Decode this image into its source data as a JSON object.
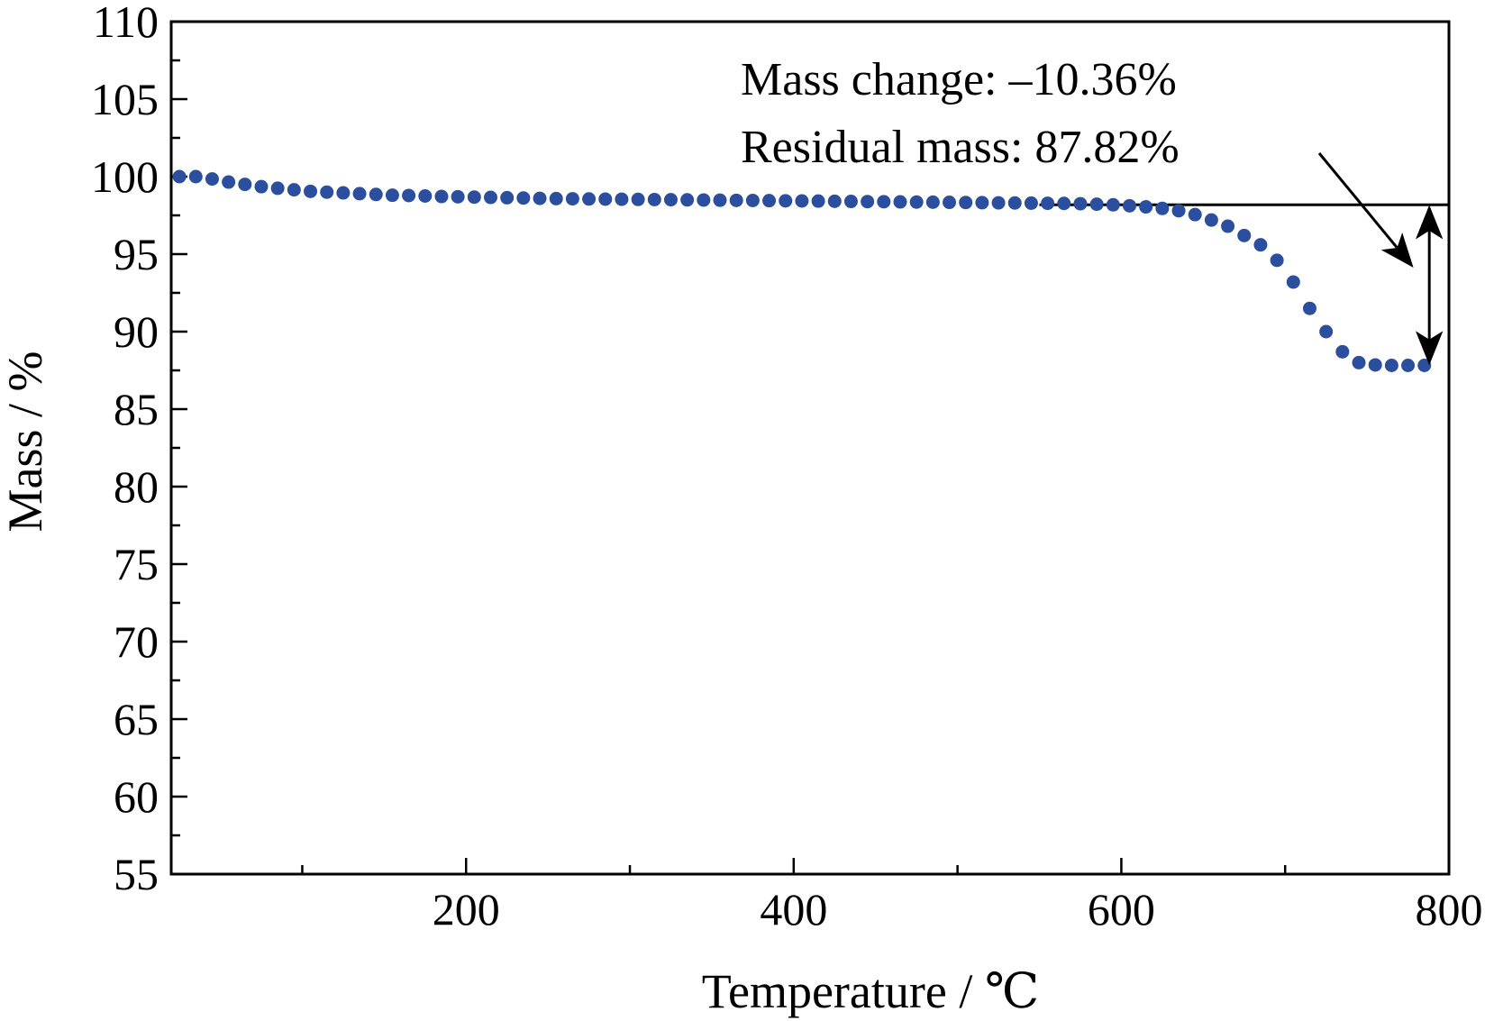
{
  "chart_data": {
    "type": "scatter",
    "xlabel": "Temperature / ℃",
    "ylabel": "Mass / %",
    "xlim": [
      20,
      800
    ],
    "ylim": [
      55,
      110
    ],
    "xticks": [
      200,
      400,
      600,
      800
    ],
    "yticks": [
      55,
      60,
      65,
      70,
      75,
      80,
      85,
      90,
      95,
      100,
      105,
      110
    ],
    "grid": false,
    "marker_color": "#2b4f9e",
    "series": [
      {
        "x": [
          25,
          35,
          45,
          55,
          65,
          75,
          85,
          95,
          105,
          115,
          125,
          135,
          145,
          155,
          165,
          175,
          185,
          195,
          205,
          215,
          225,
          235,
          245,
          255,
          265,
          275,
          285,
          295,
          305,
          315,
          325,
          335,
          345,
          355,
          365,
          375,
          385,
          395,
          405,
          415,
          425,
          435,
          445,
          455,
          465,
          475,
          485,
          495,
          505,
          515,
          525,
          535,
          545,
          555,
          565,
          575,
          585,
          595,
          605,
          615,
          625,
          635,
          645,
          655,
          665,
          675,
          685,
          695,
          705,
          715,
          725,
          735,
          745,
          755,
          765,
          775,
          785
        ],
        "y": [
          100.0,
          100.0,
          99.85,
          99.65,
          99.5,
          99.35,
          99.25,
          99.15,
          99.05,
          99.0,
          98.95,
          98.9,
          98.85,
          98.8,
          98.78,
          98.75,
          98.72,
          98.7,
          98.68,
          98.66,
          98.64,
          98.62,
          98.6,
          98.58,
          98.57,
          98.56,
          98.55,
          98.54,
          98.53,
          98.52,
          98.51,
          98.5,
          98.49,
          98.48,
          98.47,
          98.46,
          98.45,
          98.44,
          98.43,
          98.42,
          98.41,
          98.4,
          98.39,
          98.38,
          98.37,
          98.36,
          98.35,
          98.34,
          98.33,
          98.32,
          98.31,
          98.3,
          98.29,
          98.28,
          98.27,
          98.25,
          98.22,
          98.18,
          98.12,
          98.05,
          97.95,
          97.8,
          97.55,
          97.2,
          96.8,
          96.2,
          95.6,
          94.6,
          93.2,
          91.5,
          90.0,
          88.7,
          88.0,
          87.85,
          87.82,
          87.82,
          87.82
        ]
      }
    ],
    "annotations": {
      "mass_change": "Mass change: –10.36%",
      "residual_mass": "Residual mass: 87.82%",
      "reference_level": 98.18,
      "residual_level": 87.82
    }
  }
}
